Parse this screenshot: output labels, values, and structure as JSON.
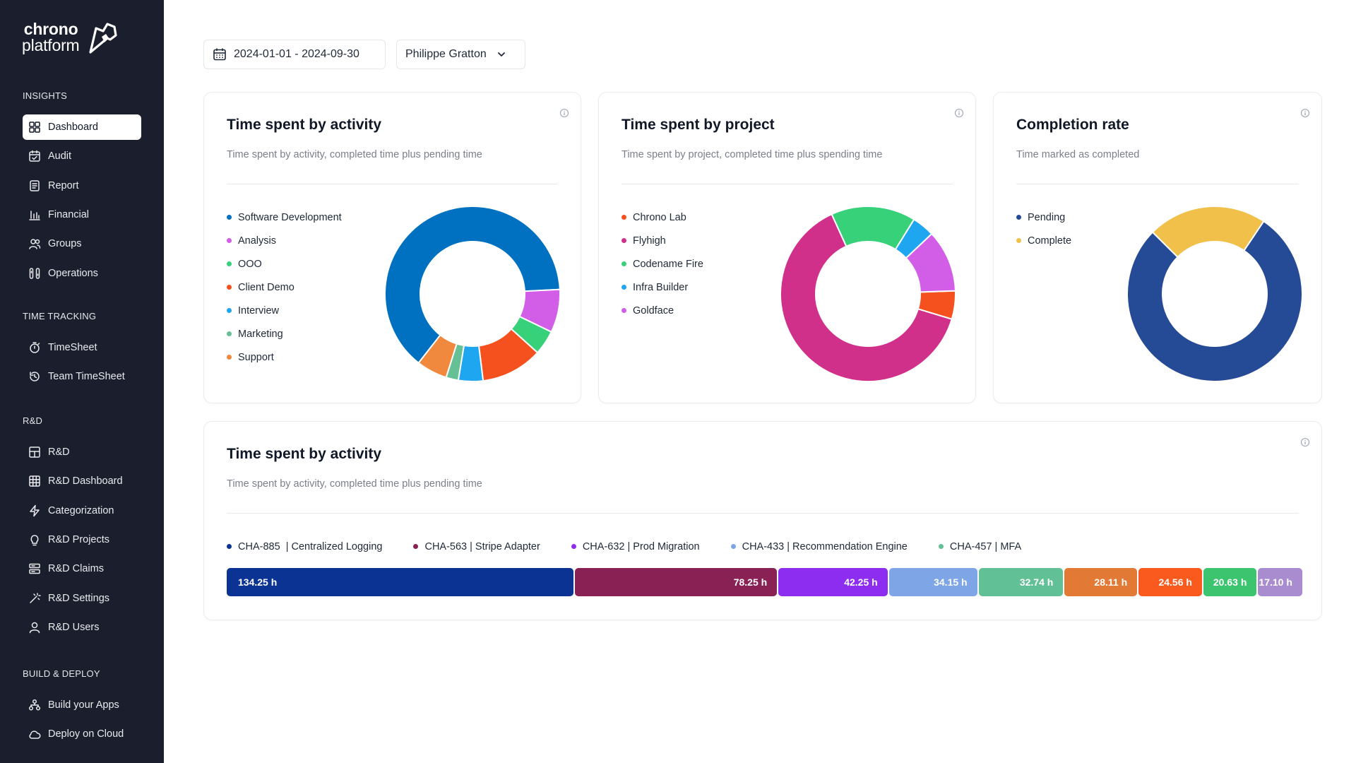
{
  "brand": {
    "line1": "chrono",
    "line2": "platform"
  },
  "sidebar": {
    "sections": [
      {
        "title": "INSIGHTS",
        "items": [
          {
            "label": "Dashboard",
            "icon": "dashboard-icon",
            "active": true
          },
          {
            "label": "Audit",
            "icon": "calendar-check-icon"
          },
          {
            "label": "Report",
            "icon": "report-icon"
          },
          {
            "label": "Financial",
            "icon": "bar-chart-icon"
          },
          {
            "label": "Groups",
            "icon": "users-icon"
          },
          {
            "label": "Operations",
            "icon": "operations-icon"
          }
        ]
      },
      {
        "title": "TIME TRACKING",
        "items": [
          {
            "label": "TimeSheet",
            "icon": "stopwatch-icon"
          },
          {
            "label": "Team TimeSheet",
            "icon": "history-icon"
          }
        ]
      },
      {
        "title": "R&D",
        "items": [
          {
            "label": "R&D",
            "icon": "layout-icon"
          },
          {
            "label": "R&D Dashboard",
            "icon": "grid-icon"
          },
          {
            "label": "Categorization",
            "icon": "bolt-icon"
          },
          {
            "label": "R&D Projects",
            "icon": "lightbulb-icon"
          },
          {
            "label": "R&D Claims",
            "icon": "claims-icon"
          },
          {
            "label": "R&D Settings",
            "icon": "wand-icon"
          },
          {
            "label": "R&D Users",
            "icon": "user-icon"
          }
        ]
      },
      {
        "title": "BUILD & DEPLOY",
        "items": [
          {
            "label": "Build your Apps",
            "icon": "apps-icon"
          },
          {
            "label": "Deploy on Cloud",
            "icon": "cloud-icon"
          }
        ]
      }
    ]
  },
  "filters": {
    "date_range": "2024-01-01 - 2024-09-30",
    "user": "Philippe Gratton"
  },
  "cards": {
    "activity": {
      "title": "Time spent by activity",
      "subtitle": "Time spent by activity, completed time plus pending time"
    },
    "project": {
      "title": "Time spent by project",
      "subtitle": "Time spent by project, completed time plus spending time"
    },
    "completion": {
      "title": "Completion rate",
      "subtitle": "Time marked as completed"
    },
    "activity_bar": {
      "title": "Time spent by activity",
      "subtitle": "Time spent by activity, completed time plus pending time"
    }
  },
  "chart_data": [
    {
      "type": "pie",
      "title": "Time spent by activity",
      "categories": [
        "Software Development",
        "Analysis",
        "OOO",
        "Client Demo",
        "Interview",
        "Marketing",
        "Support"
      ],
      "values": [
        56,
        7,
        4,
        10,
        4,
        2,
        5
      ],
      "colors": [
        "#0070c0",
        "#d25ee8",
        "#37d17a",
        "#f4511e",
        "#1fa6f0",
        "#65c096",
        "#f0883e"
      ]
    },
    {
      "type": "pie",
      "title": "Time spent by project",
      "categories": [
        "Chrono Lab",
        "Flyhigh",
        "Codename Fire",
        "Infra Builder",
        "Goldface"
      ],
      "values": [
        5,
        61,
        15,
        4,
        11
      ],
      "colors": [
        "#f4511e",
        "#d1308a",
        "#37d17a",
        "#1fa6f0",
        "#d25ee8"
      ]
    },
    {
      "type": "pie",
      "title": "Completion rate",
      "categories": [
        "Pending",
        "Complete"
      ],
      "values": [
        78,
        22
      ],
      "colors": [
        "#264b96",
        "#f0c04a"
      ]
    },
    {
      "type": "bar",
      "title": "Time spent by activity",
      "orientation": "horizontal-stacked",
      "legend": [
        {
          "label": "CHA-885  | Centralized Logging",
          "color": "#0b3394"
        },
        {
          "label": "CHA-563 | Stripe Adapter",
          "color": "#8a2154"
        },
        {
          "label": "CHA-632 | Prod Migration",
          "color": "#8c2df0"
        },
        {
          "label": "CHA-433 | Recommendation Engine",
          "color": "#7ea6e6"
        },
        {
          "label": "CHA-457 | MFA",
          "color": "#62c096"
        }
      ],
      "segments": [
        {
          "value": 134.25,
          "label": "134.25 h",
          "color": "#0b3394"
        },
        {
          "value": 78.25,
          "label": "78.25 h",
          "color": "#8a2154"
        },
        {
          "value": 42.25,
          "label": "42.25 h",
          "color": "#8c2df0"
        },
        {
          "value": 34.15,
          "label": "34.15 h",
          "color": "#7ea6e6"
        },
        {
          "value": 32.74,
          "label": "32.74 h",
          "color": "#62c096"
        },
        {
          "value": 28.11,
          "label": "28.11 h",
          "color": "#e27a35"
        },
        {
          "value": 24.56,
          "label": "24.56 h",
          "color": "#fa5a1e"
        },
        {
          "value": 20.63,
          "label": "20.63 h",
          "color": "#3cc46f"
        },
        {
          "value": 17.1,
          "label": "17.10 h",
          "color": "#a98bd0"
        }
      ]
    }
  ]
}
